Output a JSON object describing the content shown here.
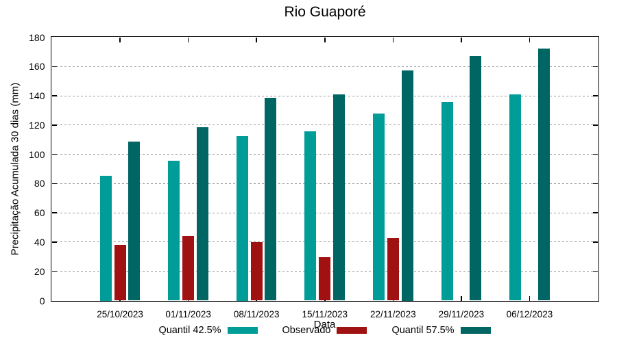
{
  "chart_data": {
    "type": "bar",
    "title": "Rio Guaporé",
    "xlabel": "Data",
    "ylabel": "Precipitação Acumulada 30 dias (mm)",
    "ylim": [
      0,
      180
    ],
    "yticks": [
      0,
      20,
      40,
      60,
      80,
      100,
      120,
      140,
      160,
      180
    ],
    "grid": "horizontal-dotted",
    "legend_position": "bottom-center",
    "categories": [
      "25/10/2023",
      "01/11/2023",
      "08/11/2023",
      "15/11/2023",
      "22/11/2023",
      "29/11/2023",
      "06/12/2023"
    ],
    "series": [
      {
        "name": "Quantil 42.5%",
        "color": "#009C98",
        "values": [
          85.5,
          95.5,
          112.5,
          115.5,
          128,
          136,
          141
        ]
      },
      {
        "name": "Observado",
        "color": "#A01112",
        "values": [
          38,
          44,
          40,
          29.5,
          43,
          null,
          null
        ]
      },
      {
        "name": "Quantil 57.5%",
        "color": "#006663",
        "values": [
          108.5,
          118.5,
          138.5,
          141,
          157.5,
          167,
          172.5
        ]
      }
    ]
  },
  "colors": {
    "background": "#ffffff",
    "axis": "#000000",
    "gridline": "#999999",
    "quantil_425": "#009C98",
    "observado": "#A01112",
    "quantil_575": "#006663"
  }
}
